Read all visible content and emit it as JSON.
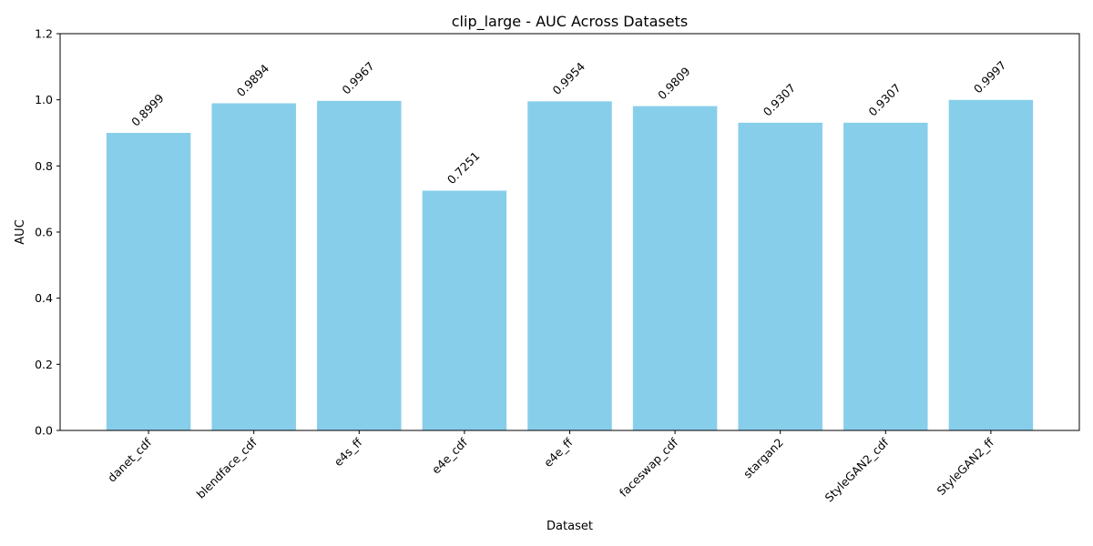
{
  "chart_data": {
    "type": "bar",
    "title": "clip_large - AUC Across Datasets",
    "xlabel": "Dataset",
    "ylabel": "AUC",
    "ylim": [
      0,
      1.2
    ],
    "yticks": [
      "0.0",
      "0.2",
      "0.4",
      "0.6",
      "0.8",
      "1.0",
      "1.2"
    ],
    "categories": [
      "danet_cdf",
      "blendface_cdf",
      "e4s_ff",
      "e4e_cdf",
      "e4e_ff",
      "faceswap_cdf",
      "stargan2",
      "StyleGAN2_cdf",
      "StyleGAN2_ff"
    ],
    "values": [
      0.8999,
      0.9894,
      0.9967,
      0.7251,
      0.9954,
      0.9809,
      0.9307,
      0.9307,
      0.9997
    ],
    "value_labels": [
      "0.8999",
      "0.9894",
      "0.9967",
      "0.7251",
      "0.9954",
      "0.9809",
      "0.9307",
      "0.9307",
      "0.9997"
    ],
    "bar_color": "#87CEEB",
    "grid": false,
    "legend": "none"
  }
}
